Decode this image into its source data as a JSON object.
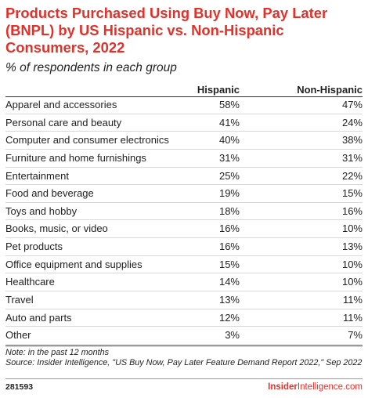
{
  "chart_data": {
    "type": "table",
    "title": "Products Purchased Using Buy Now, Pay Later (BNPL) by US Hispanic vs. Non-Hispanic Consumers, 2022",
    "subtitle": "% of respondents in each group",
    "columns": [
      "Hispanic",
      "Non-Hispanic"
    ],
    "categories": [
      "Apparel and accessories",
      "Personal care and beauty",
      "Computer and consumer electronics",
      "Furniture and home furnishings",
      "Entertainment",
      "Food and beverage",
      "Toys and hobby",
      "Books, music, or video",
      "Pet products",
      "Office equipment and supplies",
      "Healthcare",
      "Travel",
      "Auto and parts",
      "Other"
    ],
    "series": [
      {
        "name": "Hispanic",
        "values": [
          58,
          41,
          40,
          31,
          25,
          19,
          18,
          16,
          16,
          15,
          14,
          13,
          12,
          3
        ]
      },
      {
        "name": "Non-Hispanic",
        "values": [
          47,
          24,
          38,
          31,
          22,
          15,
          16,
          10,
          13,
          10,
          10,
          11,
          11,
          7
        ]
      }
    ],
    "unit": "%"
  },
  "footer": {
    "note_line": "Note: in the past 12 months",
    "source_line": "Source: Insider Intelligence, \"US Buy Now, Pay Later Feature Demand Report 2022,\" Sep 2022",
    "chart_id": "281593",
    "brand_bold": "Insider",
    "brand_light": "Intelligence",
    "brand_suffix": ".com"
  },
  "colors": {
    "accent": "#e0312a",
    "text": "#222222",
    "rule": "#d9d9d9"
  }
}
